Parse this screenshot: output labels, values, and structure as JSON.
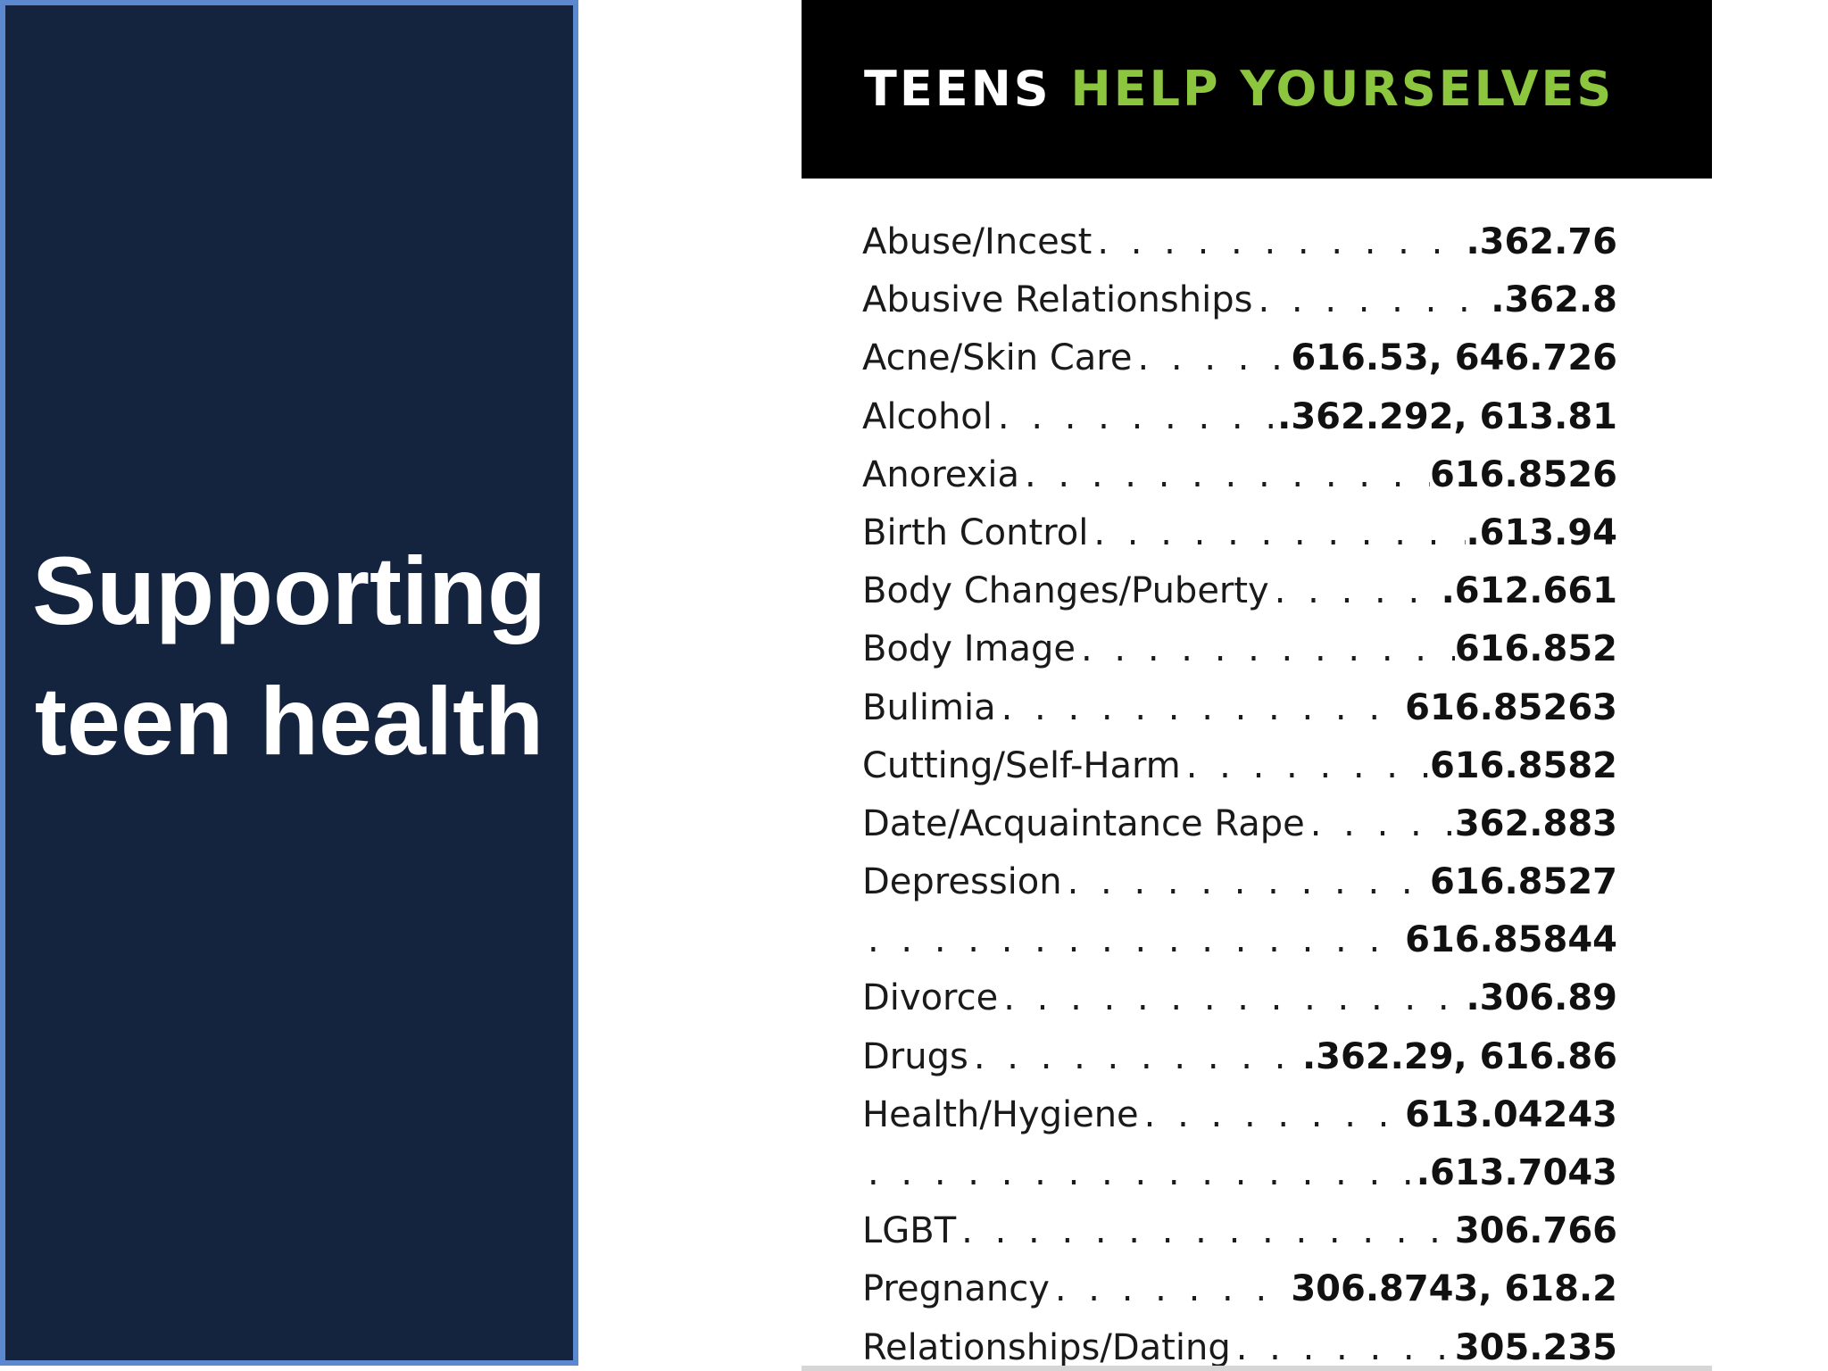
{
  "side_panel": {
    "title_line_1": "Supporting",
    "title_line_2": "teen health"
  },
  "card": {
    "header_word_1": "TEENS",
    "header_word_2": "HELP YOURSELVES",
    "entries": [
      {
        "label": "Abuse/Incest",
        "code": ".362.76"
      },
      {
        "label": "Abusive Relationships",
        "code": ".362.8"
      },
      {
        "label": "Acne/Skin Care",
        "code": "616.53, 646.726"
      },
      {
        "label": "Alcohol",
        "code": ".362.292, 613.81"
      },
      {
        "label": "Anorexia",
        "code": "616.8526"
      },
      {
        "label": "Birth Control",
        "code": ".613.94"
      },
      {
        "label": "Body Changes/Puberty",
        "code": ".612.661"
      },
      {
        "label": "Body Image",
        "code": "616.852"
      },
      {
        "label": "Bulimia",
        "code": "616.85263"
      },
      {
        "label": "Cutting/Self-Harm",
        "code": "616.8582"
      },
      {
        "label": "Date/Acquaintance Rape",
        "code": "362.883"
      },
      {
        "label": "Depression",
        "code": "616.8527"
      },
      {
        "label": "",
        "code": "616.85844"
      },
      {
        "label": "Divorce",
        "code": ".306.89"
      },
      {
        "label": "Drugs",
        "code": ".362.29, 616.86"
      },
      {
        "label": "Health/Hygiene",
        "code": "613.04243"
      },
      {
        "label": "",
        "code": ".613.7043"
      },
      {
        "label": "LGBT",
        "code": "306.766"
      },
      {
        "label": "Pregnancy",
        "code": "306.8743, 618.2"
      },
      {
        "label": "Relationships/Dating",
        "code": "305.235"
      }
    ]
  },
  "colors": {
    "panel_background": "#14233e",
    "panel_border": "#5b88cf",
    "header_accent": "#8cc63f"
  }
}
